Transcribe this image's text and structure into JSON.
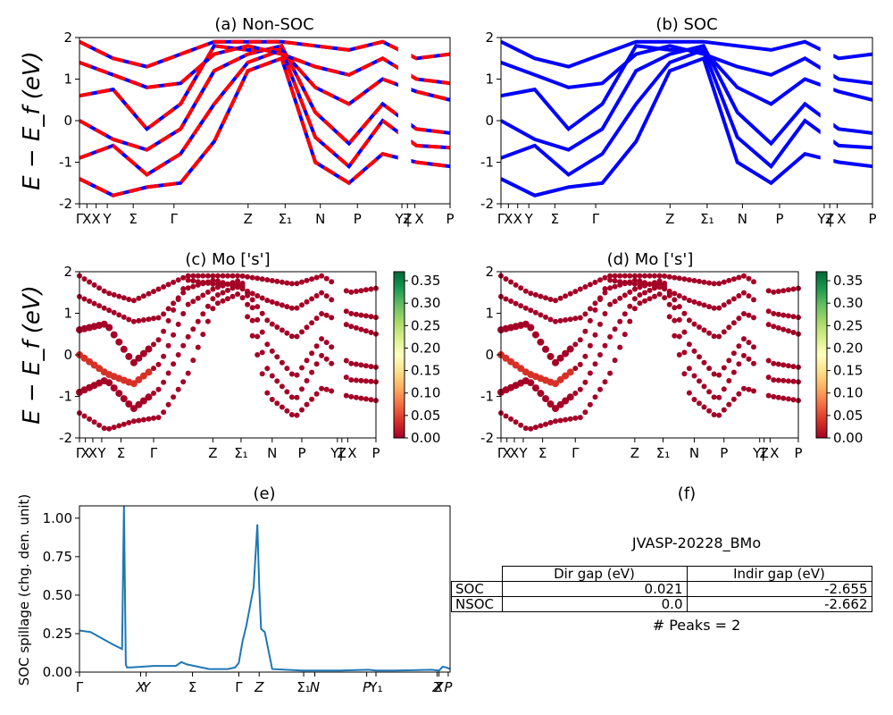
{
  "panels": {
    "a": {
      "title": "(a) Non-SOC"
    },
    "b": {
      "title": "(b) SOC"
    },
    "c": {
      "title": "(c)  Mo ['s']"
    },
    "d": {
      "title": "(d) Mo ['s']"
    },
    "e": {
      "title": "(e)"
    },
    "f": {
      "title": "(f)"
    }
  },
  "ylabel_energy": "E − E_f (eV)",
  "ylabel_spillage": "SOC spillage (chg. den. unit)",
  "band_kpath_labels": [
    "Γ",
    "X",
    "X",
    "Y",
    "Σ",
    "Γ",
    "Z",
    "Σ₁",
    "N",
    "P",
    "Y₁",
    "Z",
    "| X",
    "P"
  ],
  "colorbar_ticks": [
    "0.35",
    "0.30",
    "0.25",
    "0.20",
    "0.15",
    "0.10",
    "0.05",
    "0.00"
  ],
  "gap_table": {
    "title": "JVASP-20228_BMo",
    "headers": [
      "",
      "Dir gap (eV)",
      "Indir gap (eV)"
    ],
    "rows": [
      {
        "label": "SOC",
        "dir": "0.021",
        "indir": "-2.655"
      },
      {
        "label": "NSOC",
        "dir": "0.0",
        "indir": "-2.662"
      }
    ],
    "peaks": "# Peaks = 2"
  },
  "chart_data": [
    {
      "type": "line",
      "title": "(a) Non-SOC",
      "ylabel": "E − E_f (eV)",
      "ylim": [
        -2,
        2
      ],
      "yticks": [
        -2,
        -1,
        0,
        1,
        2
      ],
      "x_ticks": [
        "Γ",
        "X",
        "X",
        "Y",
        "Σ",
        "Γ",
        "Z",
        "Σ₁",
        "N",
        "P",
        "Y₁",
        "Z",
        "| X",
        "P"
      ],
      "colors": [
        "#ff0000",
        "#0000ff"
      ],
      "series": [
        {
          "values": [
            0.0,
            -0.45,
            -0.7,
            -0.2,
            1.2,
            1.6,
            1.8,
            0.2,
            -0.55,
            0.4,
            -0.2,
            -0.3
          ]
        },
        {
          "values": [
            -0.9,
            -0.6,
            -1.3,
            -0.8,
            0.4,
            1.4,
            1.7,
            -0.4,
            -1.1,
            0.0,
            -0.6,
            -0.65
          ]
        },
        {
          "values": [
            0.6,
            0.75,
            -0.2,
            0.4,
            1.8,
            1.7,
            1.7,
            0.8,
            0.4,
            1.0,
            0.7,
            0.5
          ]
        },
        {
          "values": [
            1.4,
            1.1,
            0.8,
            0.9,
            1.6,
            1.8,
            1.6,
            1.3,
            1.1,
            1.5,
            1.0,
            0.9
          ]
        },
        {
          "values": [
            -1.4,
            -1.8,
            -1.6,
            -1.5,
            -0.5,
            1.2,
            1.5,
            -1.0,
            -1.5,
            -0.8,
            -1.0,
            -1.1
          ]
        },
        {
          "values": [
            1.9,
            1.5,
            1.3,
            1.6,
            1.9,
            1.9,
            1.9,
            1.8,
            1.7,
            1.9,
            1.5,
            1.6
          ]
        }
      ]
    },
    {
      "type": "line",
      "title": "(b) SOC",
      "ylabel": "",
      "ylim": [
        -2,
        2
      ],
      "yticks": [
        -2,
        -1,
        0,
        1,
        2
      ],
      "x_ticks": [
        "Γ",
        "X",
        "X",
        "Y",
        "Σ",
        "Γ",
        "Z",
        "Σ₁",
        "N",
        "P",
        "Y₁",
        "Z",
        "| X",
        "P"
      ],
      "colors": [
        "#0000ff"
      ]
    },
    {
      "type": "scatter",
      "title": "(c)  Mo ['s']",
      "ylabel": "E − E_f (eV)",
      "ylim": [
        -2,
        2
      ],
      "yticks": [
        -2,
        -1,
        0,
        1,
        2
      ],
      "colorbar": {
        "min": 0.0,
        "max": 0.37,
        "ticks": [
          0.0,
          0.05,
          0.1,
          0.15,
          0.2,
          0.25,
          0.3,
          0.35
        ],
        "cmap": "RdYlGn"
      },
      "x_ticks": [
        "Γ",
        "X",
        "X",
        "Y",
        "Σ",
        "Γ",
        "Z",
        "Σ₁",
        "N",
        "P",
        "Y₁",
        "Z",
        "| X",
        "P"
      ]
    },
    {
      "type": "scatter",
      "title": "(d) Mo ['s']",
      "ylabel": "",
      "ylim": [
        -2,
        2
      ],
      "yticks": [
        -2,
        -1,
        0,
        1,
        2
      ],
      "colorbar": {
        "min": 0.0,
        "max": 0.37,
        "ticks": [
          0.0,
          0.05,
          0.1,
          0.15,
          0.2,
          0.25,
          0.3,
          0.35
        ],
        "cmap": "RdYlGn"
      },
      "x_ticks": [
        "Γ",
        "X",
        "X",
        "Y",
        "Σ",
        "Γ",
        "Z",
        "Σ₁",
        "N",
        "P",
        "Y₁",
        "Z",
        "| X",
        "P"
      ]
    },
    {
      "type": "line",
      "title": "(e)",
      "ylabel": "SOC spillage (chg. den. unit)",
      "ylim": [
        0.0,
        1.08
      ],
      "yticks": [
        0.0,
        0.25,
        0.5,
        0.75,
        1.0
      ],
      "x_ticks": [
        "Γ",
        "X",
        "Y",
        "Σ",
        "Γ",
        "Z",
        "Σ₁",
        "N",
        "P",
        "Y₁",
        "Z",
        "X",
        "P"
      ],
      "color": "#1f77b4",
      "x": [
        0.0,
        0.03,
        0.06,
        0.09,
        0.115,
        0.12,
        0.125,
        0.128,
        0.14,
        0.2,
        0.26,
        0.275,
        0.28,
        0.29,
        0.31,
        0.35,
        0.4,
        0.42,
        0.43,
        0.44,
        0.45,
        0.47,
        0.48,
        0.485,
        0.49,
        0.5,
        0.52,
        0.6,
        0.7,
        0.78,
        0.8,
        0.85,
        0.9,
        0.95,
        0.97,
        0.98,
        0.99,
        1.0
      ],
      "values": [
        0.27,
        0.26,
        0.22,
        0.18,
        0.15,
        1.08,
        0.05,
        0.03,
        0.03,
        0.04,
        0.04,
        0.065,
        0.06,
        0.05,
        0.04,
        0.02,
        0.02,
        0.03,
        0.06,
        0.2,
        0.3,
        0.55,
        0.96,
        0.55,
        0.28,
        0.26,
        0.02,
        0.01,
        0.01,
        0.015,
        0.01,
        0.01,
        0.012,
        0.015,
        0.01,
        0.035,
        0.03,
        0.02
      ]
    }
  ]
}
